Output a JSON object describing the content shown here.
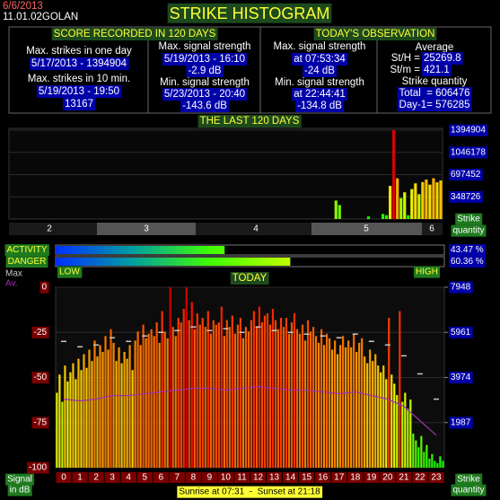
{
  "header": {
    "date": "6/6/2013",
    "version": "11.01.02GOLAN",
    "title": "STRIKE HISTOGRAM"
  },
  "score": {
    "title": "SCORE RECORDED IN 120 DAYS",
    "max_day_label": "Max. strikes in one day",
    "max_day_value": "5/17/2013 - 1394904",
    "max_10min_label": "Max. strikes in 10 min.",
    "max_10min_date": "5/19/2013 - 19:50",
    "max_10min_value": "13167",
    "max_signal_label": "Max. signal strength",
    "max_signal_date": "5/19/2013 - 16:10",
    "max_signal_value": "-2.9 dB",
    "min_signal_label": "Min. signal strength",
    "min_signal_date": "5/23/2013 - 20:40",
    "min_signal_value": "-143.6 dB"
  },
  "today": {
    "title": "TODAY'S OBSERVATION",
    "max_signal_label": "Max. signal strength",
    "max_signal_time": "at 07:53:34",
    "max_signal_value": "-24 dB",
    "min_signal_label": "Min. signal strength",
    "min_signal_time": "at 22:44:41",
    "min_signal_value": "-134.8 dB",
    "average_label": "Average",
    "sth_label": "St/H =",
    "sth_value": "25269.8",
    "stm_label": "St/m =",
    "stm_value": "421.1",
    "quantity_label": "Strike quantity",
    "total": "Total  = 606476",
    "day_before": "Day-1= 576285"
  },
  "chart_data": [
    {
      "type": "bar",
      "title": "THE LAST 120 DAYS",
      "x_labels": [
        "2",
        "3",
        "4",
        "5",
        "6"
      ],
      "values": [
        0,
        0,
        0,
        0,
        0,
        0,
        0,
        0,
        0,
        0,
        0,
        0,
        0,
        0,
        0,
        0,
        0,
        0,
        0,
        0,
        0,
        0,
        0,
        0,
        0,
        0,
        0,
        0,
        0,
        0,
        0,
        0,
        0,
        0,
        0,
        0,
        0,
        0,
        0,
        0,
        0,
        0,
        0,
        0,
        0,
        0,
        0,
        0,
        0,
        0,
        0,
        0,
        0,
        0,
        0,
        0,
        0,
        0,
        0,
        0,
        0,
        0,
        0,
        0,
        0,
        0,
        0,
        0,
        0,
        0,
        0,
        0,
        0,
        0,
        0,
        0,
        0,
        0,
        0,
        0,
        0,
        0,
        0,
        0,
        0,
        0,
        0,
        0,
        0,
        0,
        290000,
        220000,
        0,
        0,
        0,
        0,
        0,
        0,
        0,
        40000,
        0,
        0,
        0,
        80000,
        60000,
        520000,
        1394904,
        640000,
        330000,
        420000,
        60000,
        470000,
        560000,
        390000,
        580000,
        620000,
        540000,
        640000,
        576285,
        606476
      ],
      "ylim": [
        0,
        1394904
      ],
      "yticks": [
        348726,
        697452,
        1046178,
        1394904
      ],
      "y_label": [
        "Strike",
        "quantity"
      ]
    },
    {
      "type": "gauge",
      "series": [
        {
          "name": "ACTIVITY",
          "values": [
            43.47
          ],
          "value_labels": [
            "43.47 %"
          ]
        },
        {
          "name": "DANGER",
          "values": [
            60.36
          ],
          "value_labels": [
            "60.36 %"
          ]
        }
      ],
      "xlim": [
        0,
        100
      ],
      "low_label": "LOW",
      "high_label": "HIGH"
    },
    {
      "type": "day-histogram",
      "title": "TODAY",
      "categories": [
        "0",
        "1",
        "2",
        "3",
        "4",
        "5",
        "6",
        "7",
        "8",
        "9",
        "10",
        "11",
        "12",
        "13",
        "14",
        "15",
        "16",
        "17",
        "18",
        "19",
        "20",
        "21",
        "22",
        "23"
      ],
      "bars": {
        "axis": "y2",
        "values": [
          3300,
          4100,
          2900,
          4500,
          3800,
          4200,
          4600,
          3900,
          4800,
          4300,
          5000,
          4400,
          5200,
          4700,
          5600,
          4900,
          5400,
          5100,
          5800,
          5200,
          6100,
          5500,
          4700,
          5300,
          4600,
          5100,
          4800,
          5400,
          4300,
          5600,
          6000,
          5400,
          6300,
          5700,
          5900,
          6100,
          5800,
          6400,
          5500,
          6900,
          6000,
          5700,
          7948,
          6200,
          5800,
          6600,
          6400,
          7000,
          7948,
          6500,
          7300,
          6100,
          6800,
          6300,
          6600,
          6200,
          6900,
          5900,
          6500,
          6300,
          6400,
          7100,
          5800,
          6500,
          6200,
          6700,
          5900,
          6300,
          6600,
          5700,
          6200,
          6000,
          6500,
          6900,
          6200,
          7100,
          6400,
          6700,
          6800,
          6300,
          7000,
          6500,
          6100,
          6600,
          6200,
          6600,
          5900,
          6400,
          6800,
          6100,
          5900,
          6300,
          5600,
          6500,
          6000,
          6200,
          5800,
          5500,
          6100,
          5400,
          5900,
          5700,
          5200,
          5600,
          5000,
          5400,
          5800,
          5300,
          5600,
          5300,
          5900,
          5100,
          5500,
          5700,
          4900,
          4600,
          5200,
          4700,
          5000,
          4500,
          4200,
          4500,
          3900,
          6600,
          4100,
          3700,
          3200,
          6900,
          2900,
          3300,
          2600,
          3000,
          1500,
          1200,
          900,
          1400,
          700,
          1000,
          400,
          600,
          300,
          200,
          500,
          300
        ]
      },
      "series": [
        {
          "name": "Max",
          "color": "#c8c8c8",
          "values": [
            -30,
            -33,
            -32,
            -28,
            -30,
            -27,
            -25,
            -24,
            -22,
            -24,
            -23,
            -25,
            -22,
            -24,
            -25,
            -26,
            -27,
            -28,
            -26,
            -30,
            -32,
            -38,
            -48,
            -62
          ]
        },
        {
          "name": "Av.",
          "color": "#a030b0",
          "values": [
            -62,
            -63,
            -62,
            -60,
            -60,
            -59,
            -58,
            -57,
            -56,
            -56,
            -57,
            -56,
            -55,
            -56,
            -57,
            -57,
            -58,
            -59,
            -58,
            -60,
            -62,
            -66,
            -74,
            -82
          ]
        }
      ],
      "ylim": [
        -100,
        0
      ],
      "yticks": [
        0,
        -25,
        -50,
        -75,
        -100
      ],
      "y2lim": [
        0,
        7948
      ],
      "y2ticks": [
        1987,
        3974,
        5961,
        7948
      ],
      "y_label": [
        "Signal",
        "in dB"
      ],
      "y2_label": [
        "Strike",
        "quantity"
      ]
    }
  ],
  "sun": "Sunrise at 07:31  -  Sunset at 21:18"
}
